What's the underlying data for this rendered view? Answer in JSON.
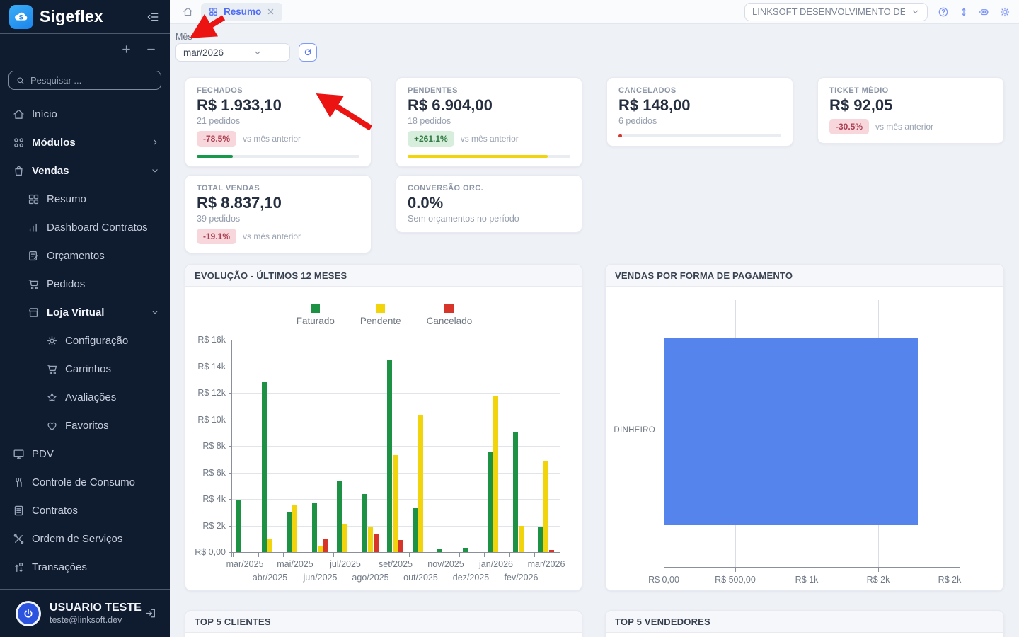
{
  "app": {
    "brand": "Sigeflex"
  },
  "sidebar": {
    "search_placeholder": "Pesquisar ...",
    "items": [
      {
        "label": "Início",
        "icon": "home",
        "depth": 0,
        "bold": false,
        "chevron": null
      },
      {
        "label": "Módulos",
        "icon": "modules",
        "depth": 0,
        "bold": true,
        "chevron": "right"
      },
      {
        "label": "Vendas",
        "icon": "bag",
        "depth": 0,
        "bold": true,
        "chevron": "down"
      },
      {
        "label": "Resumo",
        "icon": "dashboard",
        "depth": 1,
        "bold": false,
        "chevron": null
      },
      {
        "label": "Dashboard Contratos",
        "icon": "chart-bars",
        "depth": 1,
        "bold": false,
        "chevron": null
      },
      {
        "label": "Orçamentos",
        "icon": "doc-edit",
        "depth": 1,
        "bold": false,
        "chevron": null
      },
      {
        "label": "Pedidos",
        "icon": "cart",
        "depth": 1,
        "bold": false,
        "chevron": null
      },
      {
        "label": "Loja Virtual",
        "icon": "store",
        "depth": 1,
        "bold": true,
        "chevron": "down"
      },
      {
        "label": "Configuração",
        "icon": "gear",
        "depth": 2,
        "bold": false,
        "chevron": null
      },
      {
        "label": "Carrinhos",
        "icon": "cart",
        "depth": 2,
        "bold": false,
        "chevron": null
      },
      {
        "label": "Avaliações",
        "icon": "star",
        "depth": 2,
        "bold": false,
        "chevron": null
      },
      {
        "label": "Favoritos",
        "icon": "heart",
        "depth": 2,
        "bold": false,
        "chevron": null
      },
      {
        "label": "PDV",
        "icon": "monitor",
        "depth": 0,
        "bold": false,
        "chevron": null
      },
      {
        "label": "Controle de Consumo",
        "icon": "utensils",
        "depth": 0,
        "bold": false,
        "chevron": null
      },
      {
        "label": "Contratos",
        "icon": "doc",
        "depth": 0,
        "bold": false,
        "chevron": null
      },
      {
        "label": "Ordem de Serviços",
        "icon": "tools",
        "depth": 0,
        "bold": false,
        "chevron": null
      },
      {
        "label": "Transações",
        "icon": "transactions",
        "depth": 0,
        "bold": false,
        "chevron": null
      }
    ],
    "user": {
      "name": "USUARIO TESTE",
      "email": "teste@linksoft.dev"
    }
  },
  "topbar": {
    "tab_label": "Resumo",
    "company_value": "LINKSOFT DESENVOLVIMENTO DE ..."
  },
  "filter": {
    "month_label": "Mês",
    "month_value": "mar/2026"
  },
  "kpis": [
    {
      "title": "FECHADOS",
      "value": "R$ 1.933,10",
      "sub": "21 pedidos",
      "badge": "-78.5%",
      "badge_type": "down",
      "vs": "vs mês anterior",
      "bar_color": "#17984a",
      "bar_pct": 22
    },
    {
      "title": "PENDENTES",
      "value": "R$ 6.904,00",
      "sub": "18 pedidos",
      "badge": "+261.1%",
      "badge_type": "up",
      "vs": "vs mês anterior",
      "bar_color": "#f2d40d",
      "bar_pct": 86
    },
    {
      "title": "CANCELADOS",
      "value": "R$ 148,00",
      "sub": "6 pedidos",
      "badge": null,
      "badge_type": null,
      "vs": null,
      "bar_color": "#d7342a",
      "bar_pct": 2
    },
    {
      "title": "TICKET MÉDIO",
      "value": "R$ 92,05",
      "sub": null,
      "badge": "-30.5%",
      "badge_type": "down",
      "vs": "vs mês anterior",
      "bar_color": null,
      "bar_pct": null
    },
    {
      "title": "TOTAL VENDAS",
      "value": "R$ 8.837,10",
      "sub": "39 pedidos",
      "badge": "-19.1%",
      "badge_type": "down",
      "vs": "vs mês anterior",
      "bar_color": null,
      "bar_pct": null
    },
    {
      "title": "CONVERSÃO ORC.",
      "value": "0.0%",
      "sub": "Sem orçamentos no período",
      "badge": null,
      "badge_type": null,
      "vs": null,
      "bar_color": null,
      "bar_pct": null
    }
  ],
  "chart_data": [
    {
      "type": "bar",
      "title": "EVOLUÇÃO - ÚLTIMOS 12 MESES",
      "categories": [
        "mar/2025",
        "abr/2025",
        "mai/2025",
        "jun/2025",
        "jul/2025",
        "ago/2025",
        "set/2025",
        "out/2025",
        "nov/2025",
        "dez/2025",
        "jan/2026",
        "fev/2026",
        "mar/2026"
      ],
      "series": [
        {
          "name": "Faturado",
          "color": "#1d9245",
          "values": [
            3900,
            12800,
            3000,
            3700,
            5400,
            4400,
            14500,
            3300,
            250,
            300,
            7500,
            9050,
            1933.1
          ]
        },
        {
          "name": "Pendente",
          "color": "#f2d40d",
          "values": [
            0,
            1000,
            3600,
            450,
            2100,
            1850,
            7300,
            10300,
            0,
            0,
            11800,
            1950,
            6904.0
          ]
        },
        {
          "name": "Cancelado",
          "color": "#d7342a",
          "values": [
            0,
            0,
            0,
            950,
            0,
            1350,
            900,
            0,
            0,
            0,
            0,
            0,
            148.0
          ]
        }
      ],
      "ylim": [
        0,
        16000
      ],
      "y_ticks": [
        "R$ 16k",
        "R$ 14k",
        "R$ 12k",
        "R$ 10k",
        "R$ 8k",
        "R$ 6k",
        "R$ 4k",
        "R$ 2k",
        "R$ 0,00"
      ],
      "legend_position": "top",
      "grid": true
    },
    {
      "type": "bar-horizontal",
      "title": "VENDAS POR FORMA DE PAGAMENTO",
      "categories": [
        "DINHEIRO"
      ],
      "values": [
        1933.1
      ],
      "bar_color": "#5585ec",
      "xlim": [
        0,
        2182
      ],
      "x_ticks": [
        "R$ 0,00",
        "R$ 500,00",
        "R$ 1k",
        "R$ 2k",
        "R$ 2k"
      ],
      "grid": true
    }
  ],
  "sections": {
    "top_clients": "TOP 5 CLIENTES",
    "top_sellers": "TOP 5 VENDEDORES"
  },
  "colors": {
    "accent_blue": "#4d6bf5",
    "annotation_red": "#ec1313"
  }
}
